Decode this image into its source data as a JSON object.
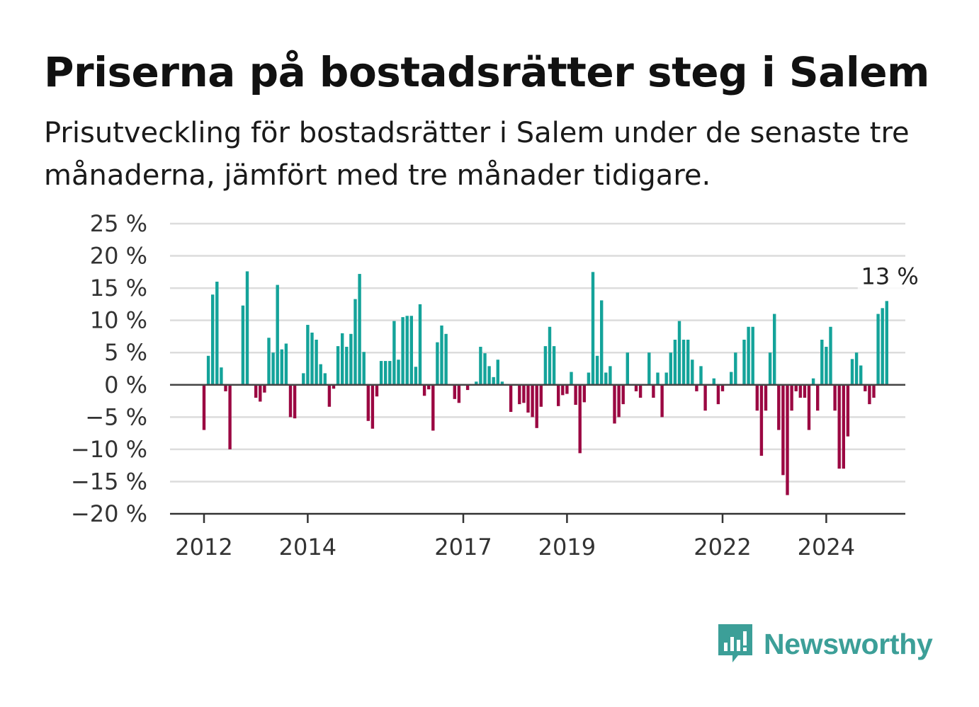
{
  "header": {
    "title": "Priserna på bostadsrätter steg i Salem",
    "subtitle": "Prisutveckling för bostadsrätter i Salem under de senaste tre månaderna, jämfört med tre månader tidigare."
  },
  "brand": {
    "name": "Newsworthy",
    "icon": "newsworthy-bar-chart-icon",
    "color": "#3c9f98"
  },
  "chart_data": {
    "type": "bar",
    "ylim": [
      -20,
      25
    ],
    "yticks": [
      25,
      20,
      15,
      10,
      5,
      0,
      -5,
      -10,
      -15,
      -20
    ],
    "ytick_labels": [
      "25 %",
      "20 %",
      "15 %",
      "10 %",
      "5 %",
      "0 %",
      "−5 %",
      "−10 %",
      "−15 %",
      "−20 %"
    ],
    "xticks": [
      {
        "label": "2012",
        "index": 0
      },
      {
        "label": "2014",
        "index": 24
      },
      {
        "label": "2017",
        "index": 60
      },
      {
        "label": "2019",
        "index": 84
      },
      {
        "label": "2022",
        "index": 120
      },
      {
        "label": "2024",
        "index": 144
      }
    ],
    "positive_color": "#14a39a",
    "negative_color": "#9b0842",
    "last_value_label": "13 %",
    "unit": "%",
    "values": [
      -7,
      4.5,
      14,
      16,
      2.7,
      -1,
      -10,
      0,
      0,
      12.3,
      17.6,
      0,
      -2,
      -2.6,
      -1.2,
      7.3,
      5,
      15.5,
      5.5,
      6.4,
      -5,
      -5.2,
      0,
      1.8,
      9.3,
      8.1,
      7,
      3.2,
      1.8,
      -3.4,
      -0.6,
      6,
      8,
      5.9,
      7.9,
      13.3,
      17.2,
      5.1,
      -5.6,
      -6.8,
      -1.8,
      3.7,
      3.7,
      3.7,
      9.9,
      3.9,
      10.5,
      10.7,
      10.7,
      2.8,
      12.5,
      -1.7,
      -0.7,
      -7.1,
      6.6,
      9.2,
      7.9,
      0,
      -2.2,
      -2.8,
      0,
      -0.8,
      0,
      0.5,
      5.9,
      4.9,
      2.9,
      1.2,
      3.9,
      0.5,
      0,
      -4.2,
      0,
      -3,
      -2.8,
      -4.3,
      -5,
      -6.7,
      -3.4,
      6,
      9,
      6,
      -3.3,
      -1.6,
      -1.4,
      2,
      -3.1,
      -10.6,
      -2.7,
      1.9,
      17.5,
      4.5,
      13.1,
      1.9,
      2.9,
      -6,
      -5,
      -3,
      5,
      0,
      -1,
      -2,
      0,
      5,
      -2,
      1.9,
      -5,
      1.9,
      5,
      7,
      9.9,
      7,
      7,
      3.9,
      -1,
      2.9,
      -4,
      0,
      1,
      -3,
      -1,
      0,
      2,
      5,
      0,
      7,
      9,
      9,
      -4,
      -11,
      -4,
      5,
      11,
      -7,
      -14,
      -17.1,
      -4,
      -1,
      -2,
      -2,
      -7,
      1,
      -4,
      7,
      5.9,
      9,
      -4,
      -13,
      -13,
      -8,
      4,
      5,
      3,
      -1,
      -3,
      -2,
      11,
      11.9,
      13
    ]
  }
}
